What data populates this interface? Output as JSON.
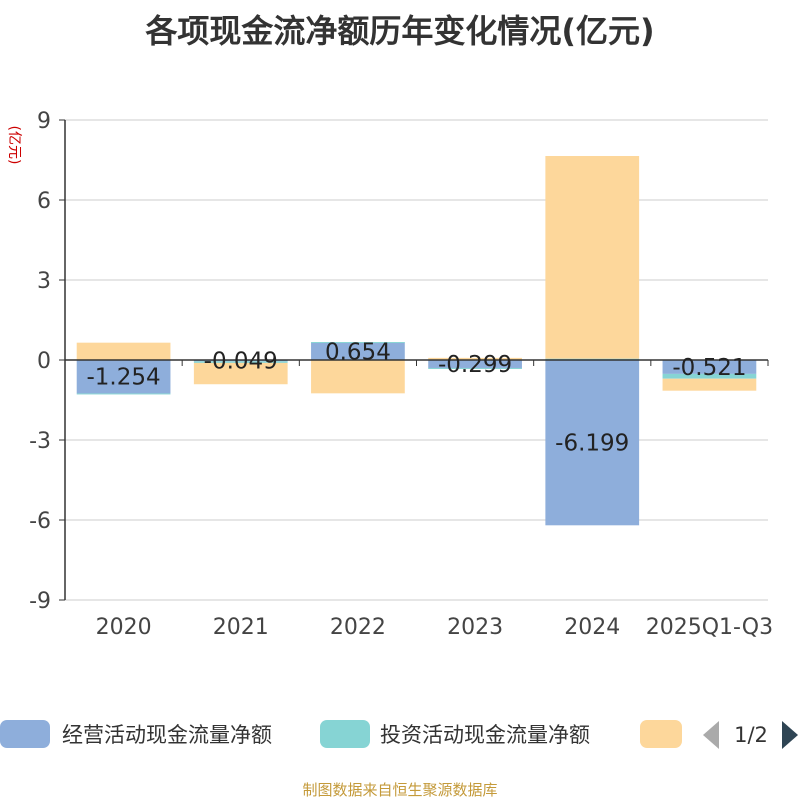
{
  "chart_data": {
    "type": "bar",
    "title": "各项现金流净额历年变化情况(亿元)",
    "ylabel": "(亿元)",
    "xlabel": "",
    "ylim": [
      -9,
      9
    ],
    "yticks": [
      9,
      6,
      3,
      0,
      -3,
      -6,
      -9
    ],
    "categories": [
      "2020",
      "2021",
      "2022",
      "2023",
      "2024",
      "2025Q1-Q3"
    ],
    "series": [
      {
        "name": "经营活动现金流量净额",
        "color": "#8eaedb",
        "values": [
          -1.254,
          -0.049,
          0.654,
          -0.299,
          -6.199,
          -0.521
        ],
        "labels": [
          "-1.254",
          "-0.049",
          "0.654",
          "-0.299",
          "-6.199",
          "-0.521"
        ]
      },
      {
        "name": "投资活动现金流量净额",
        "color": "#86d4d4",
        "values": [
          -0.02,
          -0.06,
          0.02,
          -0.02,
          0.05,
          -0.18
        ]
      },
      {
        "name": "",
        "color": "#fdd79b",
        "values": [
          0.65,
          -0.8,
          -1.25,
          0.08,
          7.6,
          -0.45
        ]
      }
    ],
    "legend": {
      "page": "1/2",
      "position": "bottom"
    }
  },
  "source": "制图数据来自恒生聚源数据库"
}
